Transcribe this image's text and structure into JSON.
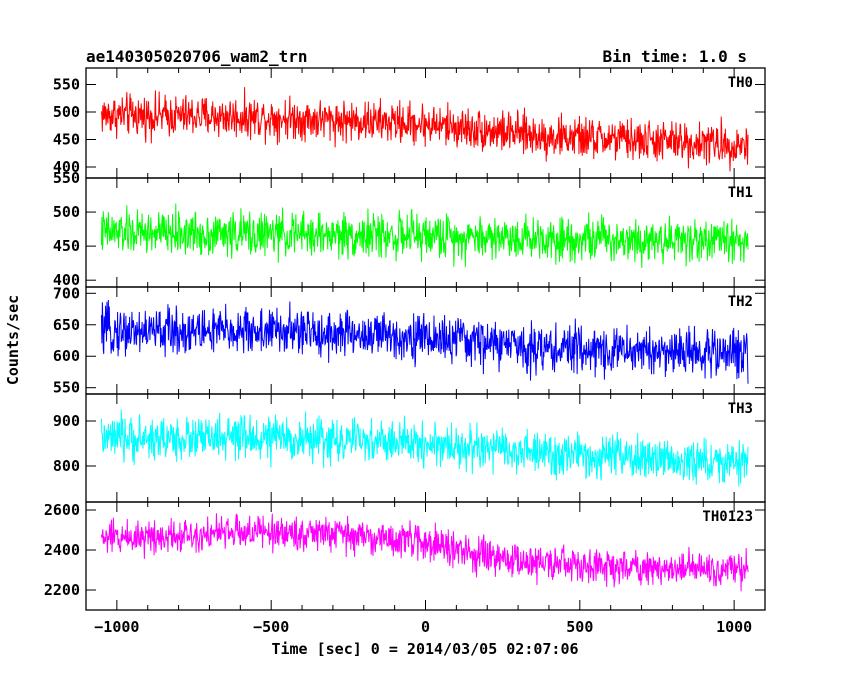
{
  "header": {
    "title": "ae140305020706_wam2_trn",
    "bin_time": "Bin time: 1.0 s"
  },
  "chart_data": {
    "type": "line",
    "xlabel": "Time [sec] 0 = 2014/03/05 02:07:06",
    "ylabel": "Counts/sec",
    "xlim": [
      -1100,
      1100
    ],
    "xticks": [
      -1000,
      -500,
      0,
      500,
      1000
    ],
    "x_range": [
      -1050,
      1045
    ],
    "grid": false,
    "panels": [
      {
        "name": "TH0",
        "color": "#ff0000",
        "ylim": [
          380,
          580
        ],
        "yticks": [
          400,
          450,
          500,
          550
        ],
        "trend": {
          "x": [
            -1050,
            -500,
            0,
            400,
            1045
          ],
          "y": [
            495,
            490,
            478,
            455,
            440
          ]
        },
        "noise_amplitude": 35
      },
      {
        "name": "TH1",
        "color": "#00ff00",
        "ylim": [
          390,
          550
        ],
        "yticks": [
          400,
          450,
          500,
          550
        ],
        "trend": {
          "x": [
            -1050,
            0,
            1045
          ],
          "y": [
            470,
            465,
            458
          ]
        },
        "noise_amplitude": 30
      },
      {
        "name": "TH2",
        "color": "#0000ff",
        "ylim": [
          540,
          710
        ],
        "yticks": [
          550,
          600,
          650,
          700
        ],
        "trend": {
          "x": [
            -1050,
            -500,
            0,
            400,
            1045
          ],
          "y": [
            640,
            640,
            630,
            612,
            605
          ]
        },
        "noise_amplitude": 35
      },
      {
        "name": "TH3",
        "color": "#00ffff",
        "ylim": [
          720,
          960
        ],
        "yticks": [
          800,
          900
        ],
        "trend": {
          "x": [
            -1050,
            -500,
            0,
            400,
            1045
          ],
          "y": [
            860,
            862,
            850,
            825,
            805
          ]
        },
        "noise_amplitude": 45
      },
      {
        "name": "TH0123",
        "color": "#ff00ff",
        "ylim": [
          2100,
          2640
        ],
        "yticks": [
          2200,
          2400,
          2600
        ],
        "trend": {
          "x": [
            -1050,
            -600,
            -300,
            0,
            200,
            500,
            1045
          ],
          "y": [
            2460,
            2490,
            2480,
            2440,
            2360,
            2320,
            2300
          ]
        },
        "noise_amplitude": 80
      }
    ]
  }
}
